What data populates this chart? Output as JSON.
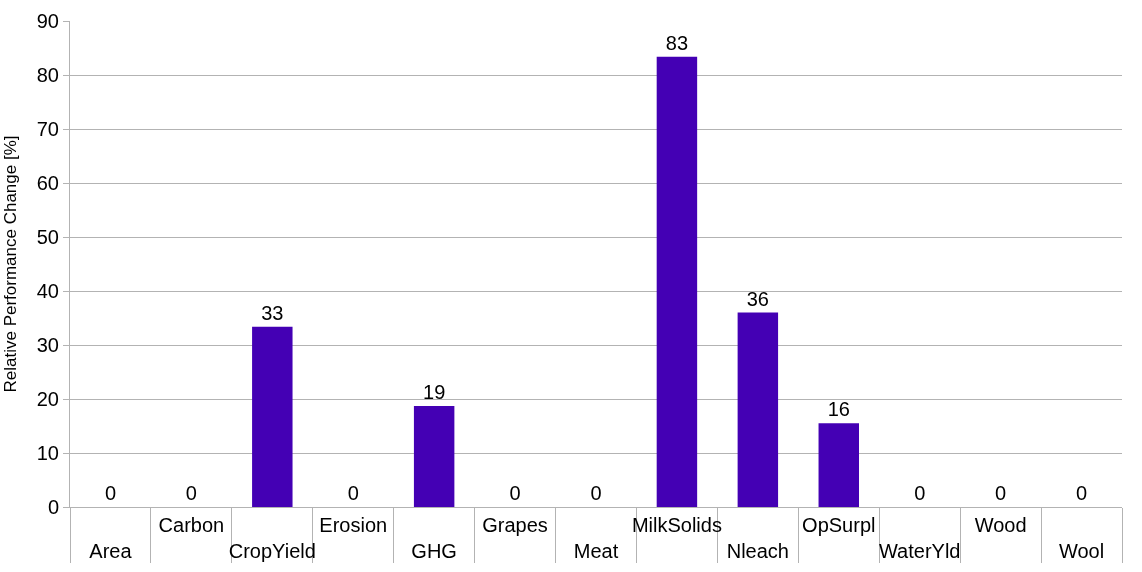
{
  "chart_data": {
    "type": "bar",
    "ylabel": "Relative Performance Change [%]",
    "categories": [
      "Area",
      "Carbon",
      "CropYield",
      "Erosion",
      "GHG",
      "Grapes",
      "Meat",
      "MilkSolids",
      "Nleach",
      "OpSurpl",
      "WaterYld",
      "Wood",
      "Wool"
    ],
    "values": [
      0,
      0,
      33.4,
      0,
      18.7,
      0,
      0,
      83.4,
      36,
      15.5,
      0,
      0,
      0
    ],
    "value_labels": [
      "0",
      "0",
      "33",
      "0",
      "19",
      "0",
      "0",
      "83",
      "36",
      "16",
      "0",
      "0",
      "0"
    ],
    "color": "#4400b4",
    "ylim": [
      0,
      90
    ],
    "yticks": [
      0,
      10,
      20,
      30,
      40,
      50,
      60,
      70,
      80,
      90
    ],
    "grid": "y",
    "legend": false
  }
}
